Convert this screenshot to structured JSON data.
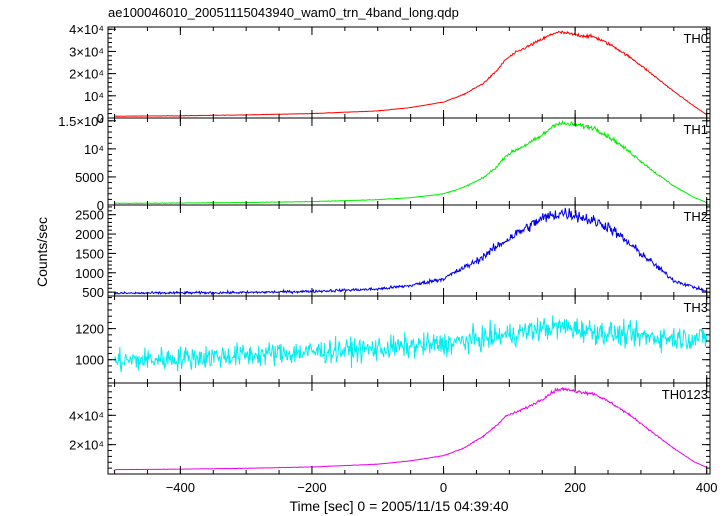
{
  "title": "ae100046010_20051115043940_wam0_trn_4band_long.qdp",
  "ylabel": "Counts/sec",
  "xlabel": "Time [sec] 0 = 2005/11/15 04:39:40",
  "chart_data": {
    "type": "line",
    "title": "ae100046010_20051115043940_wam0_trn_4band_long.qdp",
    "xlabel": "Time [sec] 0 = 2005/11/15 04:39:40",
    "ylabel": "Counts/sec",
    "xlim": [
      -510,
      405
    ],
    "x_ticks": [
      -400,
      -200,
      0,
      200,
      400
    ],
    "x_tick_labels": [
      "−400",
      "−200",
      "0",
      "200",
      "400"
    ],
    "grid": false,
    "panels": [
      {
        "name": "TH0",
        "color": "#ff0000",
        "ylim": [
          0,
          41000
        ],
        "y_ticks": [
          0,
          10000,
          20000,
          30000,
          40000
        ],
        "y_tick_labels": [
          "0",
          "10⁴",
          "2×10⁴",
          "3×10⁴",
          "4×10⁴"
        ],
        "noise": 250,
        "x": [
          -500,
          -400,
          -300,
          -200,
          -100,
          -50,
          0,
          30,
          60,
          80,
          95,
          110,
          130,
          150,
          170,
          180,
          200,
          230,
          260,
          290,
          320,
          350,
          380,
          400
        ],
        "y": [
          800,
          1000,
          1400,
          2000,
          3200,
          4700,
          7200,
          10500,
          15500,
          21000,
          26500,
          29500,
          32500,
          35500,
          38500,
          38500,
          37500,
          36500,
          32000,
          26000,
          19000,
          12000,
          5500,
          1500
        ]
      },
      {
        "name": "TH1",
        "color": "#00ee00",
        "ylim": [
          0,
          15500
        ],
        "y_ticks": [
          0,
          5000,
          10000,
          15000
        ],
        "y_tick_labels": [
          "0",
          "5000",
          "10⁴",
          "1.5×10⁴"
        ],
        "noise": 150,
        "x": [
          -500,
          -400,
          -300,
          -200,
          -100,
          -50,
          0,
          30,
          60,
          80,
          95,
          110,
          130,
          150,
          170,
          180,
          200,
          230,
          260,
          290,
          320,
          350,
          380,
          400
        ],
        "y": [
          300,
          350,
          450,
          600,
          950,
          1300,
          2000,
          3100,
          4800,
          6700,
          8800,
          9800,
          11000,
          12400,
          14500,
          14500,
          14300,
          13700,
          11500,
          8800,
          5900,
          3400,
          1400,
          450
        ]
      },
      {
        "name": "TH2",
        "color": "#0000ee",
        "ylim": [
          400,
          2750
        ],
        "y_ticks": [
          500,
          1000,
          1500,
          2000,
          2500
        ],
        "y_tick_labels": [
          "500",
          "1000",
          "1500",
          "2000",
          "2500"
        ],
        "noise": 55,
        "x": [
          -500,
          -400,
          -300,
          -200,
          -100,
          -50,
          0,
          50,
          100,
          150,
          180,
          200,
          250,
          300,
          350,
          400
        ],
        "y": [
          470,
          480,
          490,
          520,
          580,
          670,
          850,
          1300,
          1900,
          2400,
          2550,
          2500,
          2200,
          1500,
          800,
          520
        ]
      },
      {
        "name": "TH3",
        "color": "#00eeee",
        "ylim": [
          850,
          1410
        ],
        "y_ticks": [
          1000,
          1200
        ],
        "y_tick_labels": [
          "1000",
          "1200"
        ],
        "noise": 55,
        "x": [
          -500,
          -400,
          -300,
          -200,
          -100,
          0,
          50,
          100,
          150,
          180,
          200,
          250,
          300,
          350,
          400
        ],
        "y": [
          990,
          1010,
          1030,
          1050,
          1070,
          1100,
          1130,
          1160,
          1200,
          1210,
          1200,
          1170,
          1150,
          1140,
          1140
        ]
      },
      {
        "name": "TH0123",
        "color": "#ee00ee",
        "ylim": [
          0,
          62000
        ],
        "y_ticks": [
          20000,
          40000
        ],
        "y_tick_labels": [
          "2×10⁴",
          "4×10⁴"
        ],
        "noise": 350,
        "x": [
          -500,
          -400,
          -300,
          -200,
          -100,
          -50,
          0,
          30,
          60,
          80,
          95,
          110,
          130,
          150,
          170,
          180,
          200,
          230,
          260,
          290,
          320,
          350,
          380,
          400
        ],
        "y": [
          3000,
          3300,
          3900,
          4800,
          6700,
          9000,
          12500,
          17500,
          25500,
          33000,
          39500,
          42000,
          46000,
          51000,
          57000,
          58000,
          56500,
          54500,
          47000,
          38000,
          27500,
          17500,
          8500,
          4500
        ]
      }
    ]
  }
}
